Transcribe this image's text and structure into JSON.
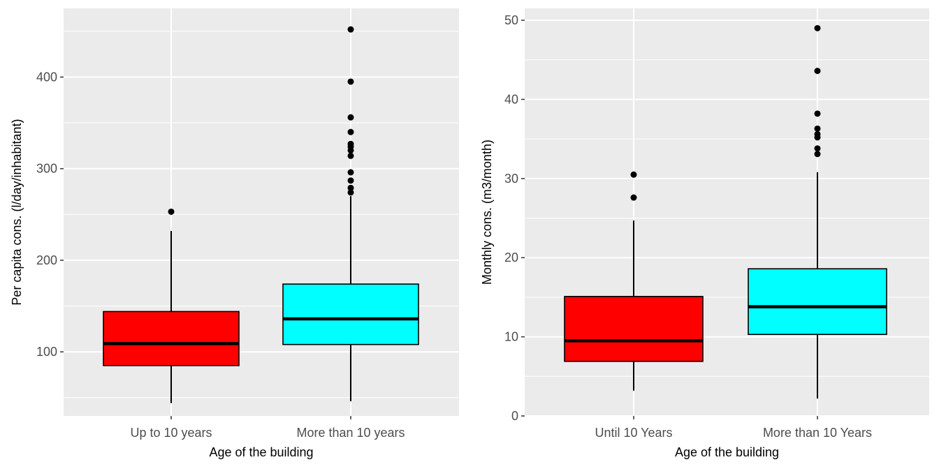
{
  "chart_data": [
    {
      "type": "boxplot",
      "xlabel": "Age of the building",
      "ylabel": "Per capita cons. (l/day/inhabitant)",
      "categories": [
        "Up to 10 years",
        "More than 10 years"
      ],
      "ylim": [
        30,
        475
      ],
      "yticks": [
        100,
        200,
        300,
        400
      ],
      "grid": true,
      "boxes": [
        {
          "category": "Up to 10 years",
          "color": "#ff0000",
          "min": 44,
          "q1": 85,
          "median": 109,
          "q3": 144,
          "max": 232,
          "outliers": [
            253
          ]
        },
        {
          "category": "More than 10 years",
          "color": "#00ffff",
          "min": 46,
          "q1": 108,
          "median": 136,
          "q3": 174,
          "max": 270,
          "outliers": [
            274,
            279,
            287,
            296,
            314,
            320,
            324,
            327,
            340,
            356,
            395,
            452
          ]
        }
      ]
    },
    {
      "type": "boxplot",
      "xlabel": "Age of the building",
      "ylabel": "Monthly cons. (m3/month)",
      "categories": [
        "Until 10 Years",
        "More than 10 Years"
      ],
      "ylim": [
        0,
        51.5
      ],
      "yticks": [
        0,
        10,
        20,
        30,
        40,
        50
      ],
      "grid": true,
      "boxes": [
        {
          "category": "Until 10 Years",
          "color": "#ff0000",
          "min": 3.2,
          "q1": 6.9,
          "median": 9.5,
          "q3": 15.1,
          "max": 24.7,
          "outliers": [
            27.6,
            30.5
          ]
        },
        {
          "category": "More than 10 Years",
          "color": "#00ffff",
          "min": 2.2,
          "q1": 10.3,
          "median": 13.8,
          "q3": 18.6,
          "max": 30.8,
          "outliers": [
            33.1,
            33.8,
            35.2,
            35.6,
            36.3,
            38.2,
            43.6,
            49.0
          ]
        }
      ]
    }
  ]
}
